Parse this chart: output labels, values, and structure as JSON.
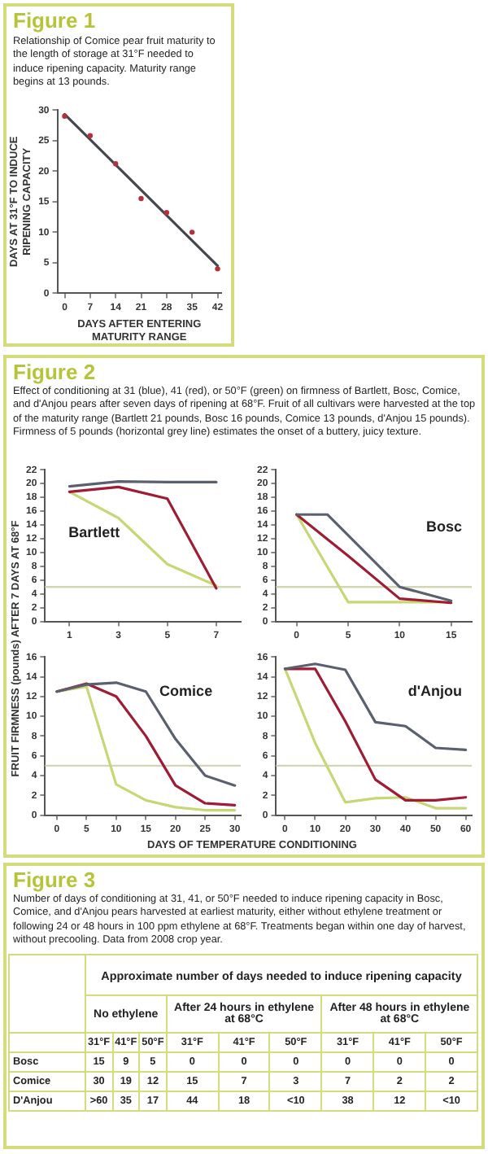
{
  "chart_data": [
    {
      "type": "scatter",
      "title": "Figure 1",
      "subtitle": "Relationship of Comice pear fruit maturity to the length of storage at 31°F needed to induce ripening capacity. Maturity range begins at 13 pounds.",
      "xlabel": "DAYS AFTER ENTERING MATURITY RANGE",
      "ylabel": "DAYS AT 31°F TO INDUCE RIPENING CAPACITY",
      "xlim": [
        -2,
        43
      ],
      "xticks": [
        0,
        7,
        14,
        21,
        28,
        35,
        42
      ],
      "ylim": [
        0,
        30
      ],
      "yticks": [
        0,
        5,
        10,
        15,
        20,
        25,
        30
      ],
      "marker": "circle",
      "series": [
        {
          "color": "#b3303c",
          "x": [
            0,
            7,
            14,
            21,
            28,
            35,
            42
          ],
          "values": [
            29,
            25.8,
            21.2,
            15.5,
            13.2,
            10,
            4
          ]
        },
        {
          "type": "line",
          "marker": "none",
          "color": "#45474f",
          "x": [
            0,
            42
          ],
          "values": [
            29.3,
            4.5
          ]
        }
      ]
    },
    {
      "type": "line",
      "title": "Figure 2",
      "subtitle": "Effect of conditioning at 31 (blue), 41 (red), or 50°F (green) on firmness of Bartlett, Bosc, Comice, and d'Anjou pears after seven days of ripening at 68°F. Fruit of all cultivars were harvested at the top of the maturity range (Bartlett 21 pounds, Bosc 16 pounds, Comice 13 pounds, d'Anjou 15 pounds). Firmness of 5 pounds (horizontal grey line) estimates the onset of a buttery, juicy texture.",
      "ylabel": "FRUIT FIRMNESS (pounds) AFTER 7 DAYS AT 68°F",
      "annotations": [
        "Bartlett"
      ],
      "marker": "none",
      "xlim": [
        0,
        8
      ],
      "xticks": [
        1,
        3,
        5,
        7
      ],
      "ylim": [
        0,
        22
      ],
      "yticks": [
        0,
        2,
        4,
        6,
        8,
        10,
        12,
        14,
        16,
        18,
        20,
        22
      ],
      "ref_lines": [
        {
          "axis": "y",
          "value": 5,
          "color": "#d3d6b4"
        }
      ],
      "series": [
        {
          "color": "#5b6070",
          "x": [
            1,
            3,
            5,
            7
          ],
          "values": [
            19.6,
            20.3,
            20.2,
            20.2
          ]
        },
        {
          "color": "#9e1c34",
          "x": [
            1,
            3,
            5,
            7
          ],
          "values": [
            18.8,
            19.5,
            17.8,
            4.8
          ]
        },
        {
          "color": "#c9d676",
          "x": [
            1,
            3,
            5,
            7
          ],
          "values": [
            18.8,
            15,
            8.3,
            5.2
          ]
        }
      ]
    },
    {
      "type": "line",
      "annotations": [
        "Bosc"
      ],
      "marker": "none",
      "xlim": [
        -2,
        17
      ],
      "xticks": [
        0,
        5,
        10,
        15
      ],
      "ylim": [
        0,
        22
      ],
      "yticks": [
        0,
        2,
        4,
        6,
        8,
        10,
        12,
        14,
        16,
        18,
        20,
        22
      ],
      "ref_lines": [
        {
          "axis": "y",
          "value": 5,
          "color": "#d3d6b4"
        }
      ],
      "series": [
        {
          "color": "#5b6070",
          "x": [
            0,
            3,
            10,
            15
          ],
          "values": [
            15.5,
            15.5,
            5,
            3
          ]
        },
        {
          "color": "#9e1c34",
          "x": [
            0,
            5,
            10,
            15
          ],
          "values": [
            15.5,
            9.5,
            3.3,
            2.7
          ]
        },
        {
          "color": "#c9d676",
          "x": [
            0,
            5,
            10,
            15
          ],
          "values": [
            15.5,
            2.8,
            2.8,
            2.8
          ]
        }
      ]
    },
    {
      "type": "line",
      "annotations": [
        "Comice"
      ],
      "xlabel": "DAYS OF TEMPERATURE CONDITIONING",
      "marker": "none",
      "xlim": [
        -2,
        31
      ],
      "xticks": [
        0,
        5,
        10,
        15,
        20,
        25,
        30
      ],
      "ylim": [
        0,
        16
      ],
      "yticks": [
        0,
        2,
        4,
        6,
        8,
        10,
        12,
        14,
        16
      ],
      "ref_lines": [
        {
          "axis": "y",
          "value": 5,
          "color": "#d3d6b4"
        }
      ],
      "series": [
        {
          "color": "#5b6070",
          "x": [
            0,
            5,
            10,
            15,
            20,
            25,
            30
          ],
          "values": [
            12.5,
            13.2,
            13.4,
            12.5,
            7.7,
            4,
            3
          ]
        },
        {
          "color": "#9e1c34",
          "x": [
            0,
            5,
            10,
            15,
            20,
            25,
            30
          ],
          "values": [
            12.5,
            13.3,
            12,
            8,
            3,
            1.2,
            1
          ]
        },
        {
          "color": "#c9d676",
          "x": [
            0,
            5,
            10,
            15,
            20,
            25,
            30
          ],
          "values": [
            12.5,
            13,
            3.1,
            1.5,
            0.8,
            0.5,
            0.5
          ]
        }
      ]
    },
    {
      "type": "line",
      "annotations": [
        "d'Anjou"
      ],
      "marker": "none",
      "xlim": [
        -3,
        62
      ],
      "xticks": [
        0,
        10,
        20,
        30,
        40,
        50,
        60
      ],
      "ylim": [
        0,
        16
      ],
      "yticks": [
        0,
        2,
        4,
        6,
        8,
        10,
        12,
        14,
        16
      ],
      "ref_lines": [
        {
          "axis": "y",
          "value": 5,
          "color": "#d3d6b4"
        }
      ],
      "series": [
        {
          "color": "#5b6070",
          "x": [
            0,
            10,
            20,
            30,
            40,
            50,
            60
          ],
          "values": [
            14.8,
            15.3,
            14.7,
            9.4,
            9,
            6.8,
            6.6
          ]
        },
        {
          "color": "#9e1c34",
          "x": [
            0,
            10,
            20,
            30,
            40,
            50,
            60
          ],
          "values": [
            14.8,
            14.8,
            9.5,
            3.6,
            1.5,
            1.5,
            1.8
          ]
        },
        {
          "color": "#c9d676",
          "x": [
            0,
            10,
            20,
            30,
            40,
            50,
            60
          ],
          "values": [
            14.8,
            7.3,
            1.3,
            1.7,
            1.8,
            0.7,
            0.7
          ]
        }
      ]
    },
    {
      "type": "other",
      "title": "Figure 3",
      "subtitle": "Number of days of conditioning at 31, 41, or 50°F needed to induce ripening capacity in Bosc, Comice, and d'Anjou pears harvested at earliest maturity, either without ethylene treatment or following 24 or 48 hours in 100 ppm ethylene at 68°F. Treatments began within one day of harvest, without precooling. Data from 2008 crop year.",
      "annotations": [
        "Approximate number of days needed to induce ripening capacity",
        "No ethylene",
        "After 24 hours in ethylene at 68°C",
        "After 48 hours in ethylene at 68°C"
      ],
      "categories": [
        "31°F",
        "41°F",
        "50°F",
        "31°F",
        "41°F",
        "50°F",
        "31°F",
        "41°F",
        "50°F"
      ],
      "y_categories": [
        "Bosc",
        "Comice",
        "D'Anjou"
      ],
      "cell_labels": [
        [
          "15",
          "9",
          "5",
          "0",
          "0",
          "0",
          "0",
          "0",
          "0"
        ],
        [
          "30",
          "19",
          "12",
          "15",
          "7",
          "3",
          "7",
          "2",
          "2"
        ],
        [
          ">60",
          "35",
          "17",
          "44",
          "18",
          "<10",
          "38",
          "12",
          "<10"
        ]
      ]
    }
  ]
}
